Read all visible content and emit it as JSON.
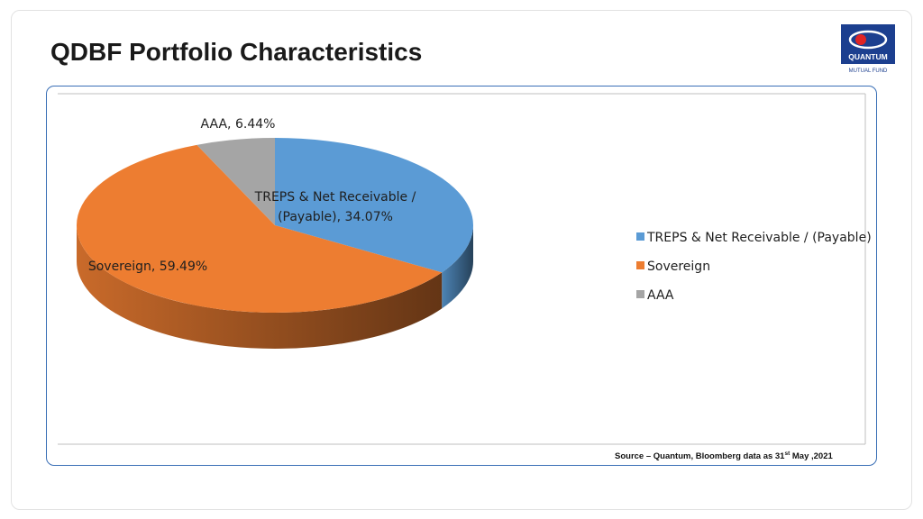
{
  "title": "QDBF Portfolio Characteristics",
  "logo": {
    "icon": "quantum-mutual-fund-logo",
    "brand": "QUANTUM",
    "sub": "MUTUAL FUND",
    "color": "#1c3f8f"
  },
  "source": {
    "prefix": "Source – Quantum, Bloomberg data as 31",
    "sup": "st",
    "suffix": " May ,2021"
  },
  "chart_data": {
    "type": "pie",
    "three_d": true,
    "categories": [
      "TREPS & Net Receivable / (Payable)",
      "Sovereign",
      "AAA"
    ],
    "values": [
      34.07,
      59.49,
      6.44
    ],
    "data_labels": [
      "TREPS & Net Receivable /\n(Payable), 34.07%",
      "Sovereign, 59.49%",
      "AAA, 6.44%"
    ],
    "colors": [
      "#5b9bd5",
      "#ed7d31",
      "#a5a5a5"
    ],
    "legend": {
      "position": "right",
      "entries": [
        "TREPS & Net Receivable / (Payable)",
        "Sovereign",
        "AAA"
      ]
    }
  }
}
